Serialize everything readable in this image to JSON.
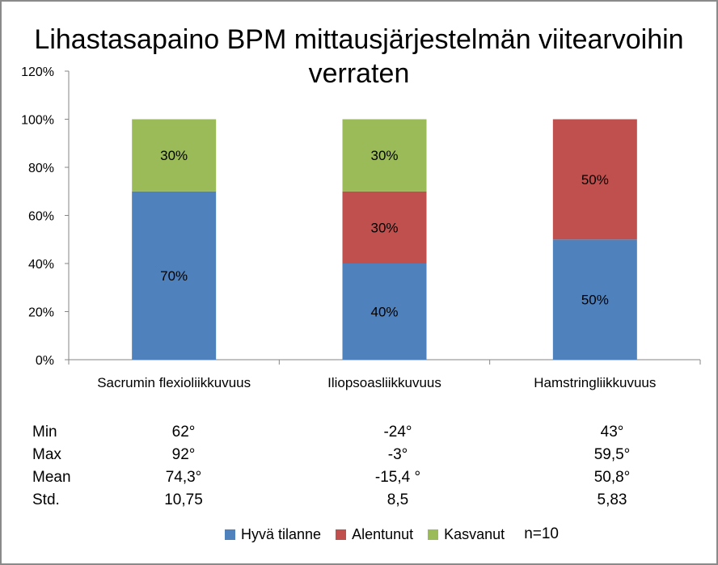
{
  "chart_data": {
    "type": "bar",
    "stacked": true,
    "title": "Lihastasapaino BPM mittausjärjestelmän viitearvoihin verraten",
    "categories": [
      "Sacrumin flexioliikkuvuus",
      "Iliopsoasliikkuvuus",
      "Hamstringliikkuvuus"
    ],
    "series": [
      {
        "name": "Hyvä tilanne",
        "color": "#4f81bd",
        "values": [
          70,
          40,
          50
        ],
        "labels": [
          "70%",
          "40%",
          "50%"
        ]
      },
      {
        "name": "Alentunut",
        "color": "#c0504d",
        "values": [
          0,
          30,
          50
        ],
        "labels": [
          "",
          "30%",
          "50%"
        ]
      },
      {
        "name": "Kasvanut",
        "color": "#9bbb59",
        "values": [
          30,
          30,
          0
        ],
        "labels": [
          "30%",
          "30%",
          ""
        ]
      }
    ],
    "ylim": [
      0,
      120
    ],
    "yticks": [
      "0%",
      "20%",
      "40%",
      "60%",
      "80%",
      "100%",
      "120%"
    ],
    "grid": false,
    "legend_position": "bottom"
  },
  "stats_table": {
    "row_labels": [
      "Min",
      "Max",
      "Mean",
      "Std."
    ],
    "columns": [
      [
        "62°",
        "92°",
        "74,3°",
        "10,75"
      ],
      [
        "-24°",
        "-3°",
        "-15,4 °",
        "8,5"
      ],
      [
        "43°",
        "59,5°",
        "50,8°",
        "5,83"
      ]
    ]
  },
  "note": "n=10"
}
